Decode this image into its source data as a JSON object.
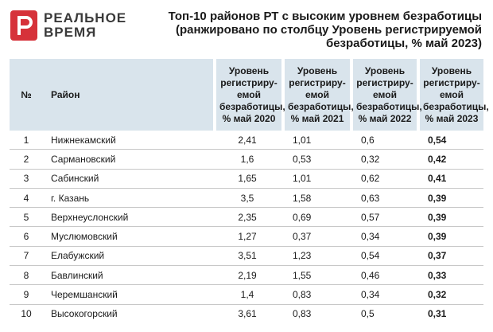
{
  "brand": {
    "line1": "РЕАЛЬНОЕ",
    "line2": "ВРЕМЯ",
    "logo_icon": "realnoe-vremya-logo-icon",
    "accent_color": "#d6323a"
  },
  "title": "Топ-10 районов РТ с высоким уровнем безработицы (ранжировано по столбцу Уровень регистрируемой безработицы, %  май 2023)",
  "table": {
    "header_bg": "#d9e4ec",
    "columns": [
      "№",
      "Район",
      "Уровень регистриру-емой безработицы, %  май 2020",
      "Уровень регистриру-емой безработицы, %  май 2021",
      "Уровень регистриру-емой безработицы, %  май 2022",
      "Уровень регистриру-емой безработицы, %  май 2023"
    ],
    "rows": [
      {
        "num": "1",
        "district": "Нижнекамский",
        "y2020": "2,41",
        "y2021": "1,01",
        "y2022": "0,6",
        "y2023": "0,54"
      },
      {
        "num": "2",
        "district": "Сармановский",
        "y2020": "1,6",
        "y2021": "0,53",
        "y2022": "0,32",
        "y2023": "0,42"
      },
      {
        "num": "3",
        "district": "Сабинский",
        "y2020": "1,65",
        "y2021": "1,01",
        "y2022": "0,62",
        "y2023": "0,41"
      },
      {
        "num": "4",
        "district": "г. Казань",
        "y2020": "3,5",
        "y2021": "1,58",
        "y2022": "0,63",
        "y2023": "0,39"
      },
      {
        "num": "5",
        "district": "Верхнеуслонский",
        "y2020": "2,35",
        "y2021": "0,69",
        "y2022": "0,57",
        "y2023": "0,39"
      },
      {
        "num": "6",
        "district": "Муслюмовский",
        "y2020": "1,27",
        "y2021": "0,37",
        "y2022": "0,34",
        "y2023": "0,39"
      },
      {
        "num": "7",
        "district": "Елабужский",
        "y2020": "3,51",
        "y2021": "1,23",
        "y2022": "0,54",
        "y2023": "0,37"
      },
      {
        "num": "8",
        "district": "Бавлинский",
        "y2020": "2,19",
        "y2021": "1,55",
        "y2022": "0,46",
        "y2023": "0,33"
      },
      {
        "num": "9",
        "district": "Черемшанский",
        "y2020": "1,4",
        "y2021": "0,83",
        "y2022": "0,34",
        "y2023": "0,32"
      },
      {
        "num": "10",
        "district": "Высокогорский",
        "y2020": "3,61",
        "y2021": "0,83",
        "y2022": "0,5",
        "y2023": "0,31"
      }
    ]
  }
}
